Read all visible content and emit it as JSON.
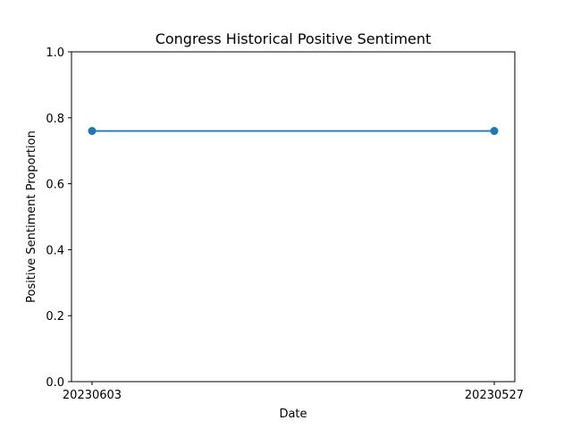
{
  "chart_data": {
    "type": "line",
    "title": "Congress Historical Positive Sentiment",
    "xlabel": "Date",
    "ylabel": "Positive Sentiment Proportion",
    "categories": [
      "20230603",
      "20230527"
    ],
    "series": [
      {
        "values": [
          0.76,
          0.76
        ],
        "color": "#1f77b4",
        "marker": "circle"
      }
    ],
    "ylim": [
      0,
      1.0
    ],
    "yticks": [
      "0.0",
      "0.2",
      "0.4",
      "0.6",
      "0.8",
      "1.0"
    ],
    "ytick_values": [
      0,
      0.2,
      0.4,
      0.6,
      0.8,
      1.0
    ],
    "grid": false,
    "legend": "none"
  }
}
